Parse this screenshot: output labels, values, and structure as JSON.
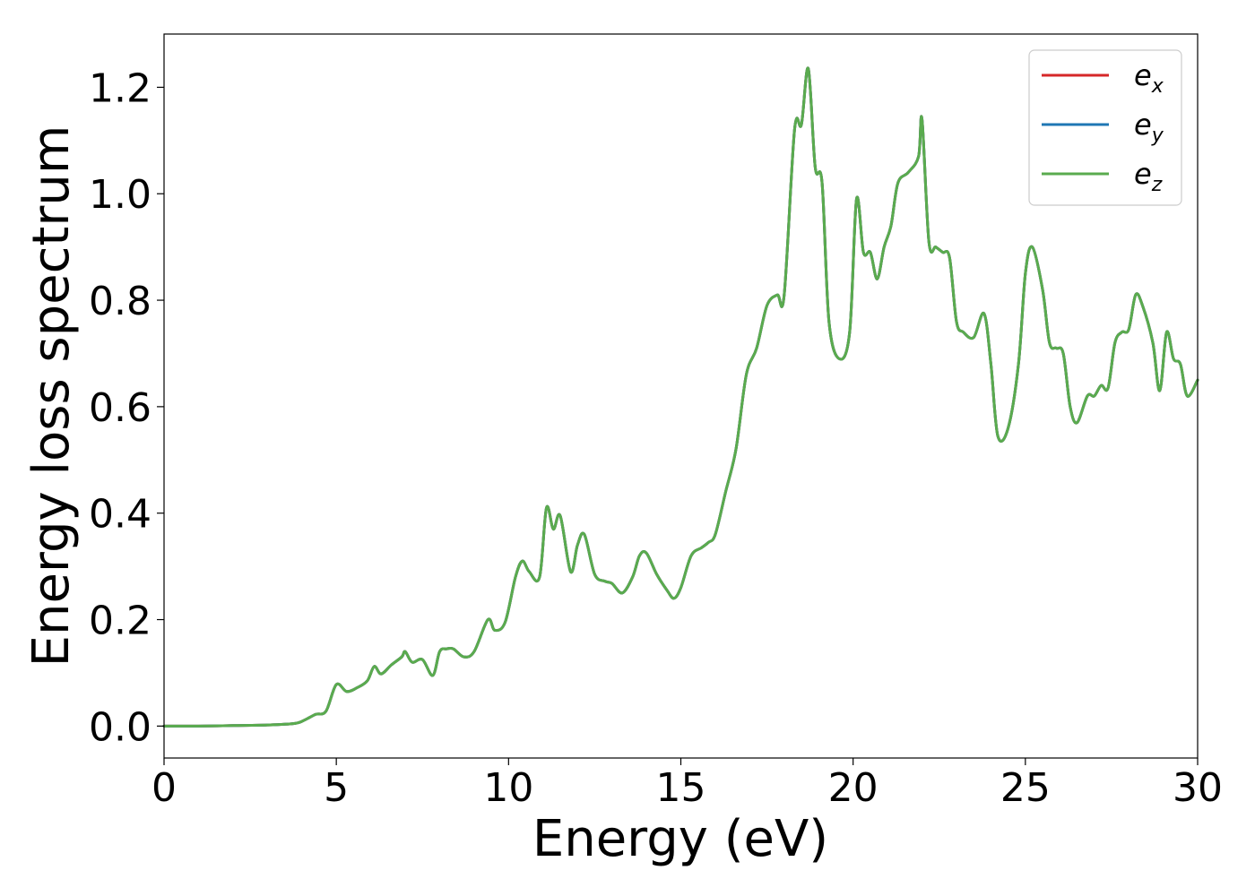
{
  "chart_data": {
    "type": "line",
    "xlabel": "Energy (eV)",
    "ylabel": "Energy loss spectrum",
    "xlim": [
      0,
      30
    ],
    "ylim": [
      -0.06,
      1.3
    ],
    "x_ticks": [
      0,
      5,
      10,
      15,
      20,
      25,
      30
    ],
    "x_tick_labels": [
      "0",
      "5",
      "10",
      "15",
      "20",
      "25",
      "30"
    ],
    "y_ticks": [
      0.0,
      0.2,
      0.4,
      0.6,
      0.8,
      1.0,
      1.2
    ],
    "y_tick_labels": [
      "0.0",
      "0.2",
      "0.4",
      "0.6",
      "0.8",
      "1.0",
      "1.2"
    ],
    "grid": false,
    "legend_position": "top-right",
    "x": [
      0,
      1,
      2,
      3,
      3.8,
      4.1,
      4.4,
      4.7,
      5.0,
      5.3,
      5.6,
      5.9,
      6.1,
      6.3,
      6.6,
      6.9,
      7.0,
      7.2,
      7.5,
      7.8,
      8.0,
      8.2,
      8.4,
      8.7,
      9.0,
      9.4,
      9.6,
      9.9,
      10.2,
      10.4,
      10.6,
      10.9,
      11.1,
      11.3,
      11.5,
      11.8,
      12.0,
      12.2,
      12.5,
      12.8,
      13.0,
      13.3,
      13.6,
      13.8,
      14.0,
      14.3,
      14.6,
      14.8,
      15.0,
      15.3,
      15.6,
      15.8,
      16.0,
      16.3,
      16.6,
      16.9,
      17.2,
      17.5,
      17.8,
      18.0,
      18.3,
      18.5,
      18.7,
      18.9,
      19.1,
      19.3,
      19.6,
      19.9,
      20.1,
      20.3,
      20.5,
      20.7,
      20.9,
      21.1,
      21.3,
      21.6,
      21.9,
      22.0,
      22.2,
      22.4,
      22.6,
      22.8,
      23.0,
      23.2,
      23.5,
      23.8,
      24.0,
      24.2,
      24.5,
      24.8,
      25.0,
      25.2,
      25.5,
      25.7,
      25.9,
      26.1,
      26.3,
      26.5,
      26.8,
      27.0,
      27.2,
      27.4,
      27.6,
      27.8,
      28.0,
      28.2,
      28.4,
      28.7,
      28.9,
      29.1,
      29.3,
      29.5,
      29.7,
      30.0
    ],
    "series": [
      {
        "name": "e_x",
        "color": "#d62728",
        "values": [
          0.0,
          0.0,
          0.001,
          0.002,
          0.005,
          0.012,
          0.022,
          0.028,
          0.078,
          0.065,
          0.072,
          0.085,
          0.112,
          0.098,
          0.115,
          0.13,
          0.14,
          0.12,
          0.125,
          0.095,
          0.14,
          0.145,
          0.145,
          0.13,
          0.14,
          0.2,
          0.18,
          0.195,
          0.28,
          0.31,
          0.29,
          0.28,
          0.41,
          0.37,
          0.395,
          0.29,
          0.34,
          0.36,
          0.285,
          0.272,
          0.268,
          0.25,
          0.28,
          0.32,
          0.325,
          0.285,
          0.255,
          0.24,
          0.26,
          0.32,
          0.335,
          0.345,
          0.36,
          0.44,
          0.52,
          0.66,
          0.71,
          0.79,
          0.81,
          0.81,
          1.12,
          1.13,
          1.235,
          1.05,
          1.02,
          0.76,
          0.69,
          0.74,
          0.99,
          0.89,
          0.89,
          0.84,
          0.9,
          0.94,
          1.02,
          1.04,
          1.07,
          1.14,
          0.91,
          0.9,
          0.89,
          0.88,
          0.76,
          0.74,
          0.73,
          0.775,
          0.68,
          0.545,
          0.56,
          0.68,
          0.85,
          0.9,
          0.82,
          0.72,
          0.71,
          0.7,
          0.6,
          0.57,
          0.62,
          0.62,
          0.64,
          0.635,
          0.72,
          0.74,
          0.745,
          0.81,
          0.79,
          0.72,
          0.63,
          0.74,
          0.69,
          0.68,
          0.62,
          0.65
        ]
      },
      {
        "name": "e_y",
        "color": "#1f77b4",
        "values": [
          0.0,
          0.0,
          0.001,
          0.002,
          0.005,
          0.012,
          0.022,
          0.028,
          0.078,
          0.065,
          0.072,
          0.085,
          0.112,
          0.098,
          0.115,
          0.13,
          0.14,
          0.12,
          0.125,
          0.095,
          0.14,
          0.145,
          0.145,
          0.13,
          0.14,
          0.2,
          0.18,
          0.195,
          0.28,
          0.31,
          0.29,
          0.28,
          0.41,
          0.37,
          0.395,
          0.29,
          0.34,
          0.36,
          0.285,
          0.272,
          0.268,
          0.25,
          0.28,
          0.32,
          0.325,
          0.285,
          0.255,
          0.24,
          0.26,
          0.32,
          0.335,
          0.345,
          0.36,
          0.44,
          0.52,
          0.66,
          0.71,
          0.79,
          0.81,
          0.81,
          1.12,
          1.13,
          1.235,
          1.05,
          1.02,
          0.76,
          0.69,
          0.74,
          0.99,
          0.89,
          0.89,
          0.84,
          0.9,
          0.94,
          1.02,
          1.04,
          1.07,
          1.14,
          0.91,
          0.9,
          0.89,
          0.88,
          0.76,
          0.74,
          0.73,
          0.775,
          0.68,
          0.545,
          0.56,
          0.68,
          0.85,
          0.9,
          0.82,
          0.72,
          0.71,
          0.7,
          0.6,
          0.57,
          0.62,
          0.62,
          0.64,
          0.635,
          0.72,
          0.74,
          0.745,
          0.81,
          0.79,
          0.72,
          0.63,
          0.74,
          0.69,
          0.68,
          0.62,
          0.65
        ]
      },
      {
        "name": "e_z",
        "color": "#5aab4e",
        "values": [
          0.0,
          0.0,
          0.001,
          0.002,
          0.005,
          0.012,
          0.022,
          0.028,
          0.078,
          0.065,
          0.072,
          0.085,
          0.112,
          0.098,
          0.115,
          0.13,
          0.14,
          0.12,
          0.125,
          0.095,
          0.14,
          0.145,
          0.145,
          0.13,
          0.14,
          0.2,
          0.18,
          0.195,
          0.28,
          0.31,
          0.29,
          0.28,
          0.41,
          0.37,
          0.395,
          0.29,
          0.34,
          0.36,
          0.285,
          0.272,
          0.268,
          0.25,
          0.28,
          0.32,
          0.325,
          0.285,
          0.255,
          0.24,
          0.26,
          0.32,
          0.335,
          0.345,
          0.36,
          0.44,
          0.52,
          0.66,
          0.71,
          0.79,
          0.81,
          0.81,
          1.12,
          1.13,
          1.235,
          1.05,
          1.02,
          0.76,
          0.69,
          0.74,
          0.99,
          0.89,
          0.89,
          0.84,
          0.9,
          0.94,
          1.02,
          1.04,
          1.07,
          1.14,
          0.91,
          0.9,
          0.89,
          0.88,
          0.76,
          0.74,
          0.73,
          0.775,
          0.68,
          0.545,
          0.56,
          0.68,
          0.85,
          0.9,
          0.82,
          0.72,
          0.71,
          0.7,
          0.6,
          0.57,
          0.62,
          0.62,
          0.64,
          0.635,
          0.72,
          0.74,
          0.745,
          0.81,
          0.79,
          0.72,
          0.63,
          0.74,
          0.69,
          0.68,
          0.62,
          0.65
        ]
      }
    ],
    "legend": [
      {
        "base": "e",
        "sub": "x",
        "color": "#d62728"
      },
      {
        "base": "e",
        "sub": "y",
        "color": "#1f77b4"
      },
      {
        "base": "e",
        "sub": "z",
        "color": "#5aab4e"
      }
    ]
  }
}
